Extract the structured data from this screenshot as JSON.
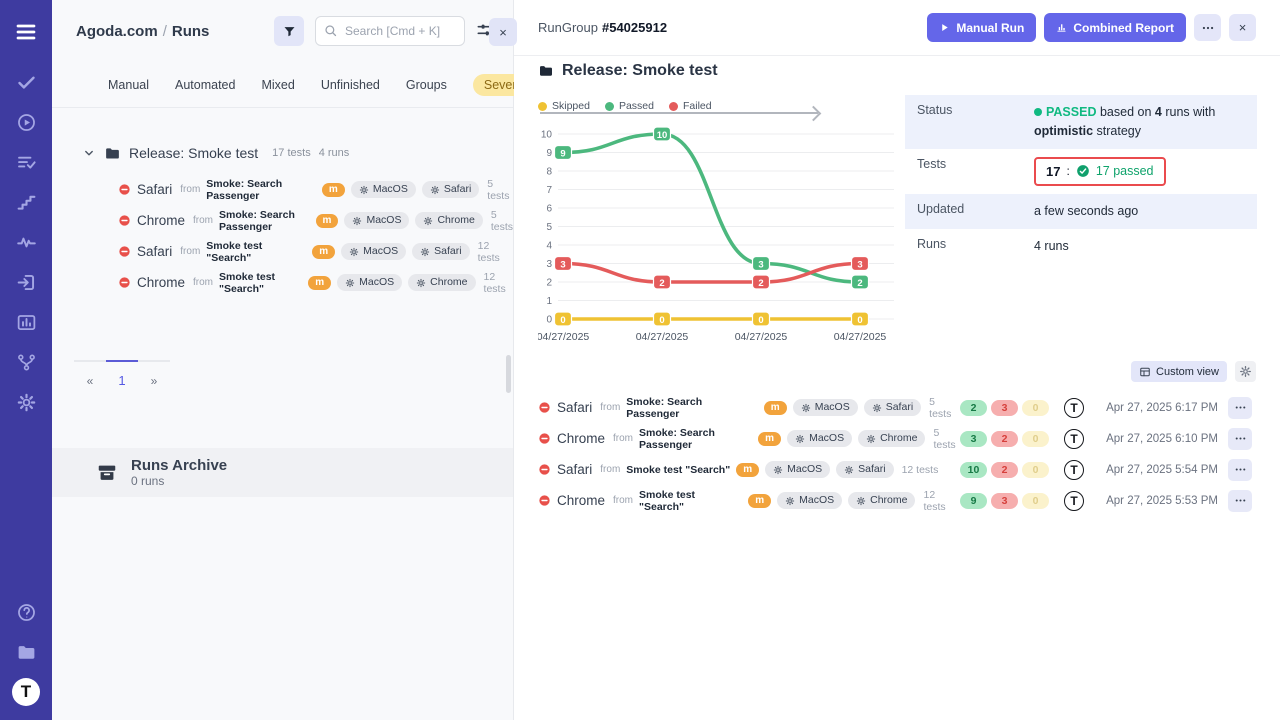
{
  "colors": {
    "sidebar": "#3E3BA0",
    "accent": "#6466E9",
    "accent_light": "#E3E6F9",
    "passed_green": "#10B981",
    "failed_red": "#EA4B4E",
    "skipped_yellow": "#EFC233",
    "severity_bg": "#FBE7A0",
    "m_badge_orange": "#F2A33C",
    "highlight_border": "#EA4B4E"
  },
  "left_panel": {
    "header": {
      "project": "Agoda.com",
      "separator": "/",
      "page": "Runs",
      "search_placeholder": "Search [Cmd + K]"
    },
    "tabs": {
      "items": [
        "Manual",
        "Automated",
        "Mixed",
        "Unfinished",
        "Groups"
      ],
      "severity": "Severity"
    },
    "tree": {
      "group": {
        "name": "Release: Smoke test",
        "tests": "17 tests",
        "runs": "4 runs"
      },
      "from_label": "from",
      "runs": [
        {
          "browser": "Safari",
          "source": "Smoke: Search Passenger",
          "badge": "m",
          "env1": "MacOS",
          "env2": "Safari",
          "tests": "5 tests"
        },
        {
          "browser": "Chrome",
          "source": "Smoke: Search Passenger",
          "badge": "m",
          "env1": "MacOS",
          "env2": "Chrome",
          "tests": "5 tests"
        },
        {
          "browser": "Safari",
          "source": "Smoke test \"Search\"",
          "badge": "m",
          "env1": "MacOS",
          "env2": "Safari",
          "tests": "12 tests"
        },
        {
          "browser": "Chrome",
          "source": "Smoke test \"Search\"",
          "badge": "m",
          "env1": "MacOS",
          "env2": "Chrome",
          "tests": "12 tests"
        }
      ]
    },
    "pagination": {
      "prev": "«",
      "page": "1",
      "next": "»"
    },
    "archive": {
      "title": "Runs Archive",
      "count": "0 runs"
    },
    "close_label": "×"
  },
  "run_group": {
    "label": "RunGroup",
    "id": "#54025912",
    "manual_run": "Manual Run",
    "combined_report": "Combined Report",
    "close_label": "×",
    "title": "Release: Smoke test"
  },
  "chart_data": {
    "type": "line",
    "x": [
      "04/27/2025",
      "04/27/2025",
      "04/27/2025",
      "04/27/2025"
    ],
    "series": [
      {
        "name": "Skipped",
        "color": "#EFC233",
        "values": [
          0,
          0,
          0,
          0
        ]
      },
      {
        "name": "Passed",
        "color": "#4CB87E",
        "values": [
          9,
          10,
          3,
          2
        ]
      },
      {
        "name": "Failed",
        "color": "#E45B5B",
        "values": [
          3,
          2,
          2,
          3
        ]
      }
    ],
    "ylim": [
      0,
      10
    ],
    "yticks": [
      0,
      1,
      2,
      3,
      4,
      5,
      6,
      7,
      8,
      9,
      10
    ],
    "grid": true,
    "legend_position": "top",
    "point_labels": true
  },
  "summary": {
    "status_label": "Status",
    "status_badge": "PASSED",
    "status_text_1": "based on",
    "status_runs": "4",
    "status_text_2": "runs with",
    "status_strategy": "optimistic",
    "status_text_3": "strategy",
    "tests_label": "Tests",
    "tests_total": "17",
    "tests_sep": ":",
    "tests_passed": "17 passed",
    "updated_label": "Updated",
    "updated_value": "a few seconds ago",
    "runs_label": "Runs",
    "runs_value": "4 runs"
  },
  "toolbar": {
    "custom_view": "Custom view"
  },
  "runs_table": {
    "from_label": "from",
    "reporter": "T",
    "rows": [
      {
        "browser": "Safari",
        "source": "Smoke: Search Passenger",
        "badge": "m",
        "env1": "MacOS",
        "env2": "Safari",
        "tests": "5 tests",
        "passed": "2",
        "failed": "3",
        "skipped": "0",
        "date": "Apr 27, 2025 6:17 PM"
      },
      {
        "browser": "Chrome",
        "source": "Smoke: Search Passenger",
        "badge": "m",
        "env1": "MacOS",
        "env2": "Chrome",
        "tests": "5 tests",
        "passed": "3",
        "failed": "2",
        "skipped": "0",
        "date": "Apr 27, 2025 6:10 PM"
      },
      {
        "browser": "Safari",
        "source": "Smoke test \"Search\"",
        "badge": "m",
        "env1": "MacOS",
        "env2": "Safari",
        "tests": "12 tests",
        "passed": "10",
        "failed": "2",
        "skipped": "0",
        "date": "Apr 27, 2025 5:54 PM"
      },
      {
        "browser": "Chrome",
        "source": "Smoke test \"Search\"",
        "badge": "m",
        "env1": "MacOS",
        "env2": "Chrome",
        "tests": "12 tests",
        "passed": "9",
        "failed": "3",
        "skipped": "0",
        "date": "Apr 27, 2025 5:53 PM"
      }
    ]
  }
}
